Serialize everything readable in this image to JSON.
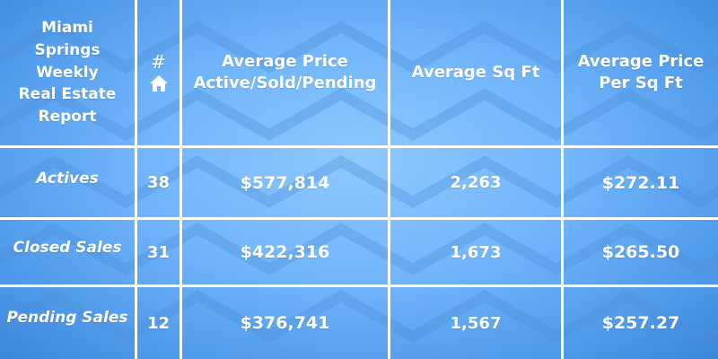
{
  "colors": {
    "background": "#6fb4fb",
    "gridlines": "#ffffff",
    "text": "#ffffff"
  },
  "header": {
    "title_lines": [
      "Miami",
      "Springs",
      "Weekly",
      "Real Estate",
      "Report"
    ],
    "count_symbol": "#",
    "count_icon": "home-icon",
    "avg_price_lines": [
      "Average Price",
      "Active/Sold/Pending"
    ],
    "avg_sqft": "Average Sq Ft",
    "avg_price_per_sqft_lines": [
      "Average Price",
      "Per Sq Ft"
    ]
  },
  "rows": [
    {
      "label": "Actives",
      "count": "38",
      "avg_price": "$577,814",
      "avg_sqft": "2,263",
      "price_per_sqft": "$272.11"
    },
    {
      "label": "Closed Sales",
      "count": "31",
      "avg_price": "$422,316",
      "avg_sqft": "1,673",
      "price_per_sqft": "$265.50"
    },
    {
      "label": "Pending Sales",
      "count": "12",
      "avg_price": "$376,741",
      "avg_sqft": "1,567",
      "price_per_sqft": "$257.27"
    }
  ]
}
